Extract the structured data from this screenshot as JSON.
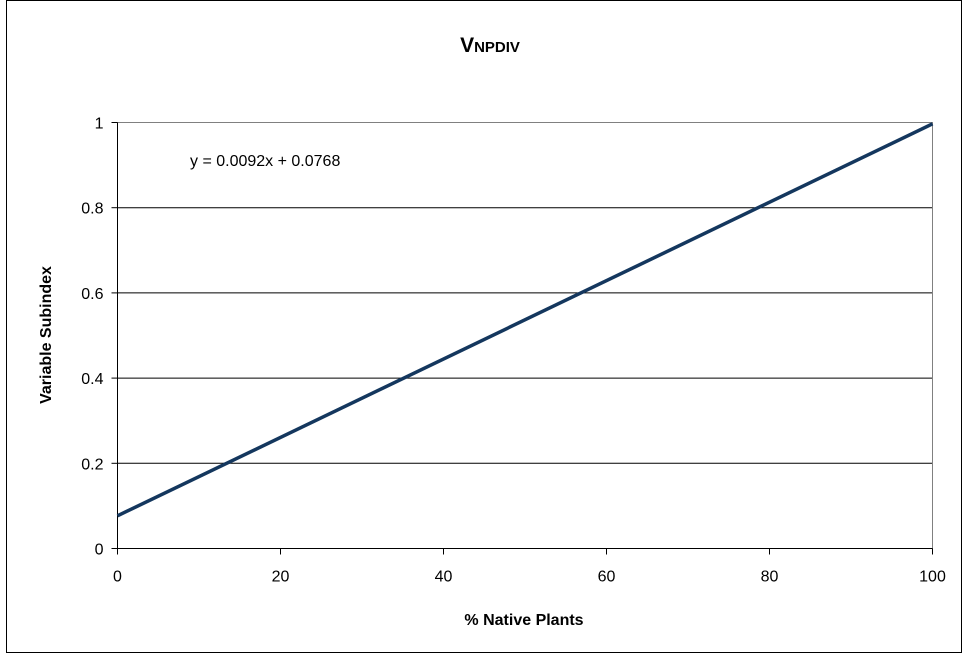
{
  "chart_data": {
    "type": "line",
    "title": "V",
    "title_subscript": "NPDIV",
    "xlabel": "% Native Plants",
    "ylabel": "Variable Subindex",
    "xlim": [
      0,
      100
    ],
    "ylim": [
      0,
      1
    ],
    "x_ticks": [
      "0",
      "20",
      "40",
      "60",
      "80",
      "100"
    ],
    "y_ticks": [
      "0",
      "0.2",
      "0.4",
      "0.6",
      "0.8",
      "1"
    ],
    "grid": "horizontal",
    "legend": "none",
    "annotation": "y = 0.0092x + 0.0768",
    "series": [
      {
        "x": [
          0,
          100
        ],
        "y": [
          0.0768,
          0.9968
        ],
        "color": "#14375e"
      }
    ]
  }
}
